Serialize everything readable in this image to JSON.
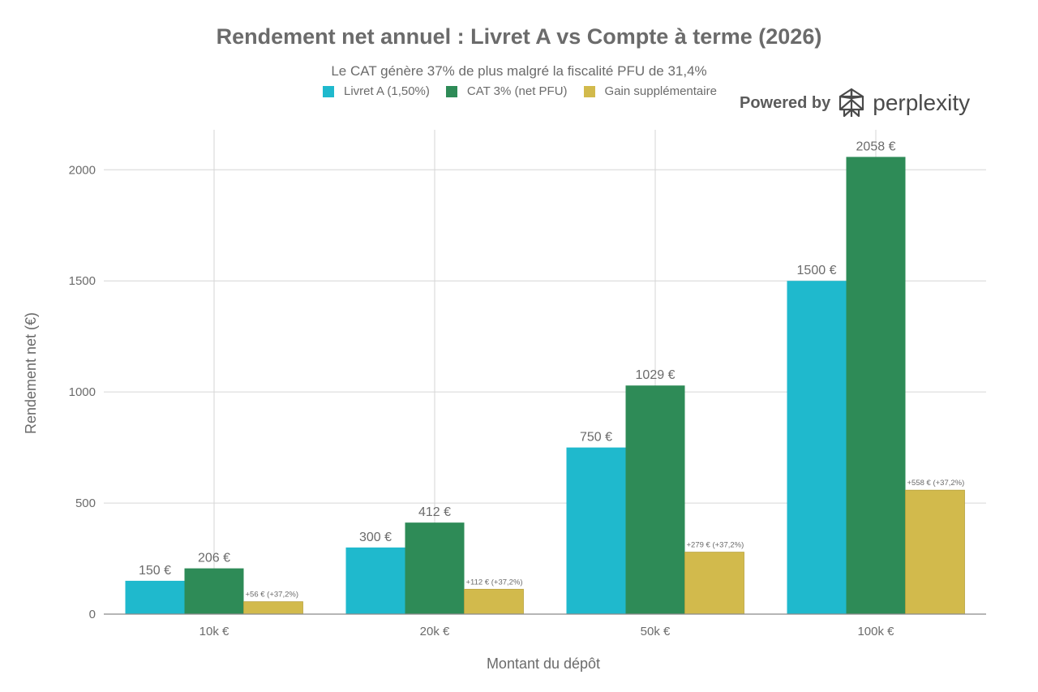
{
  "chart_data": {
    "type": "bar",
    "title": "Rendement net annuel : Livret A vs Compte à terme (2026)",
    "subtitle": "Le CAT génère 37% de plus malgré la fiscalité PFU de 31,4%",
    "xlabel": "Montant du dépôt",
    "ylabel": "Rendement net (€)",
    "ylim": [
      0,
      2180
    ],
    "yticks": [
      0,
      500,
      1000,
      1500,
      2000
    ],
    "categories": [
      "10k €",
      "20k €",
      "50k €",
      "100k €"
    ],
    "grid": true,
    "legend_position": "top",
    "series": [
      {
        "name": "Livret A (1,50%)",
        "color": "#1fb9cd",
        "values": [
          150,
          300,
          750,
          1500
        ],
        "labels": [
          "150 €",
          "300 €",
          "750 €",
          "1500 €"
        ]
      },
      {
        "name": "CAT 3% (net PFU)",
        "color": "#2e8b57",
        "values": [
          206,
          412,
          1029,
          2058
        ],
        "labels": [
          "206 €",
          "412 €",
          "1029 €",
          "2058 €"
        ]
      },
      {
        "name": "Gain supplémentaire",
        "color": "#d2ba4c",
        "values": [
          56,
          112,
          279,
          558
        ],
        "labels": [
          "+56 € (+37,2%)",
          "+112 € (+37,2%)",
          "+279 € (+37,2%)",
          "+558 € (+37,2%)"
        ]
      }
    ]
  },
  "brand": {
    "powered": "Powered by",
    "name": "perplexity",
    "logo_icon": "perplexity-logo-icon"
  }
}
